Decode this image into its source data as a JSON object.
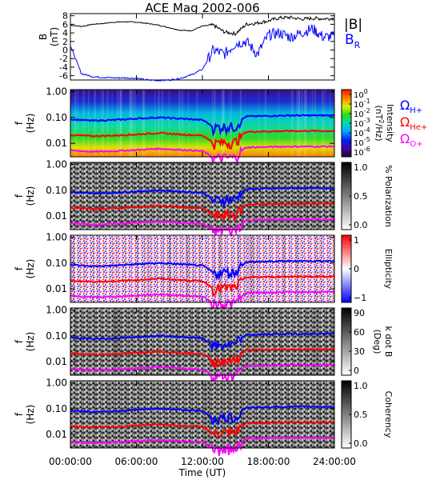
{
  "title": "ACE Mag 2002-006",
  "x_axis": {
    "label": "Time (UT)",
    "tick_labels": [
      "00:00:00",
      "06:00:00",
      "12:00:00",
      "18:00:00",
      "24:00:00"
    ],
    "range_hours": [
      0,
      24
    ]
  },
  "panel1": {
    "ylabel": "B",
    "yunit": "(nT)",
    "ytick_labels": [
      "8",
      "6",
      "4",
      "2",
      "0",
      "-2",
      "-4",
      "-6"
    ],
    "legend": {
      "bmag": "|B|",
      "br": "B",
      "br_sub": "R"
    }
  },
  "spec_ylabel": "f",
  "spec_yunit": "(Hz)",
  "spec_ytick_labels": [
    "1.00",
    "0.10",
    "0.01"
  ],
  "gyro_legend": [
    {
      "symbol": "Ω",
      "sub": "H+",
      "color": "#0000ff"
    },
    {
      "symbol": "Ω",
      "sub": "He+",
      "color": "#ff0000"
    },
    {
      "symbol": "Ω",
      "sub": "O+",
      "color": "#ff00ff"
    }
  ],
  "colorbars": [
    {
      "name": "intensity",
      "label": "Intensity",
      "unit": "(nT",
      "unit_sup": "2",
      "unit_tail": "/Hz)",
      "ticks": [
        {
          "b": "10",
          "e": "0"
        },
        {
          "b": "10",
          "e": "-1"
        },
        {
          "b": "10",
          "e": "-2"
        },
        {
          "b": "10",
          "e": "-3"
        },
        {
          "b": "10",
          "e": "-4"
        },
        {
          "b": "10",
          "e": "-5"
        },
        {
          "b": "10",
          "e": "-6"
        }
      ]
    },
    {
      "name": "polarization",
      "label": "% Polarization",
      "ticks": [
        "1.0",
        "0.5",
        "0.0"
      ]
    },
    {
      "name": "ellipticity",
      "label": "Ellipticity",
      "ticks": [
        "1",
        "0",
        "−1"
      ]
    },
    {
      "name": "k-dot-b",
      "label": "k dot B",
      "unit": "(Deg)",
      "ticks": [
        "90",
        "60",
        "30",
        "0"
      ]
    },
    {
      "name": "coherency",
      "label": "Coherency",
      "ticks": [
        "1.0",
        "0.5",
        "0.0"
      ]
    }
  ],
  "colors": {
    "bmag": "#000000",
    "br": "#0000ff",
    "h_plus": "#0000ff",
    "he_plus": "#ff0000",
    "o_plus": "#ff00ff"
  },
  "chart_data": [
    {
      "type": "line",
      "name": "magnetic-field",
      "x_hours": [
        0,
        1,
        2,
        3,
        4,
        5,
        6,
        7,
        8,
        9,
        10,
        11,
        12,
        13,
        14,
        15,
        16,
        17,
        18,
        19,
        20,
        21,
        22,
        23,
        24
      ],
      "series": [
        {
          "name": "|B|",
          "values": [
            5.8,
            5.5,
            6.0,
            6.2,
            6.5,
            6.6,
            6.5,
            6.2,
            5.8,
            5.2,
            4.6,
            4.5,
            5.6,
            5.8,
            4.2,
            3.8,
            6.0,
            6.3,
            6.8,
            7.5,
            7.6,
            7.2,
            7.4,
            7.3,
            7.4
          ]
        },
        {
          "name": "B",
          "values": [
            1.0,
            -5.5,
            -6.2,
            -6.4,
            -6.5,
            -6.5,
            -6.6,
            -7.0,
            -7.1,
            -7.0,
            -6.6,
            -5.8,
            -4.5,
            0.0,
            -1.0,
            1.5,
            2.0,
            -1.0,
            3.5,
            4.0,
            3.0,
            4.0,
            5.0,
            3.0,
            3.2
          ]
        }
      ],
      "ylim": [
        -7,
        8.5
      ]
    },
    {
      "type": "heatmap",
      "name": "wave-power-spectrogram",
      "x_hours": [
        0,
        2,
        4,
        6,
        8,
        10,
        12,
        13,
        14,
        15,
        16,
        18,
        20,
        22,
        24
      ],
      "ylim_hz": [
        0.003,
        1.2
      ],
      "yscale": "log",
      "gyrofrequency_hz": {
        "H+": [
          0.085,
          0.075,
          0.08,
          0.09,
          0.1,
          0.09,
          0.08,
          0.04,
          0.045,
          0.045,
          0.11,
          0.115,
          0.12,
          0.12,
          0.12
        ],
        "He+": [
          0.021,
          0.019,
          0.02,
          0.022,
          0.025,
          0.022,
          0.02,
          0.01,
          0.011,
          0.011,
          0.028,
          0.029,
          0.03,
          0.03,
          0.03
        ],
        "O+": [
          0.0053,
          0.0047,
          0.005,
          0.0055,
          0.0062,
          0.0056,
          0.005,
          0.0026,
          0.0028,
          0.0028,
          0.0069,
          0.0072,
          0.0075,
          0.0075,
          0.0075
        ]
      }
    }
  ]
}
